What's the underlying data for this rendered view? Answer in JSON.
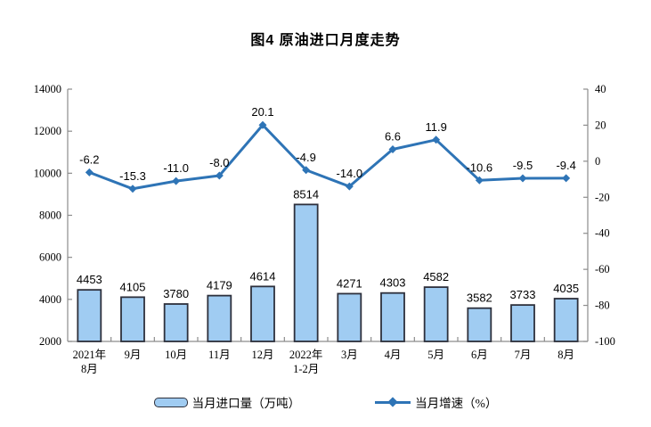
{
  "title": "图4 原油进口月度走势",
  "colors": {
    "bar_fill": "#A0CCF2",
    "bar_stroke": "#2D303C",
    "line": "#2E74B6",
    "axis": "#8C8C8C",
    "text": "#000000"
  },
  "chart_data": {
    "type": "bar",
    "combo": "bar+line",
    "title": "图4 原油进口月度走势",
    "categories": [
      "2021年\n8月",
      "9月",
      "10月",
      "11月",
      "12月",
      "2022年\n1-2月",
      "3月",
      "4月",
      "5月",
      "6月",
      "7月",
      "8月"
    ],
    "series": [
      {
        "name": "当月进口量（万吨）",
        "type": "bar",
        "axis": "left",
        "values": [
          4453,
          4105,
          3780,
          4179,
          4614,
          8514,
          4271,
          4303,
          4582,
          3582,
          3733,
          4035
        ]
      },
      {
        "name": "当月增速（%）",
        "type": "line",
        "axis": "right",
        "values": [
          -6.2,
          -15.3,
          -11.0,
          -8.0,
          20.1,
          -4.9,
          -14.0,
          6.6,
          11.9,
          -10.6,
          -9.5,
          -9.4
        ]
      }
    ],
    "left_axis": {
      "min": 2000,
      "max": 14000,
      "ticks": [
        14000,
        12000,
        10000,
        8000,
        6000,
        4000,
        2000
      ]
    },
    "right_axis": {
      "min": -100,
      "max": 40,
      "ticks": [
        40,
        20,
        0,
        -20,
        -40,
        -60,
        -80,
        -100
      ]
    },
    "grid": false,
    "legend_position": "bottom",
    "legend": {
      "bar": "当月进口量（万吨）",
      "line": "当月增速（%）"
    }
  }
}
